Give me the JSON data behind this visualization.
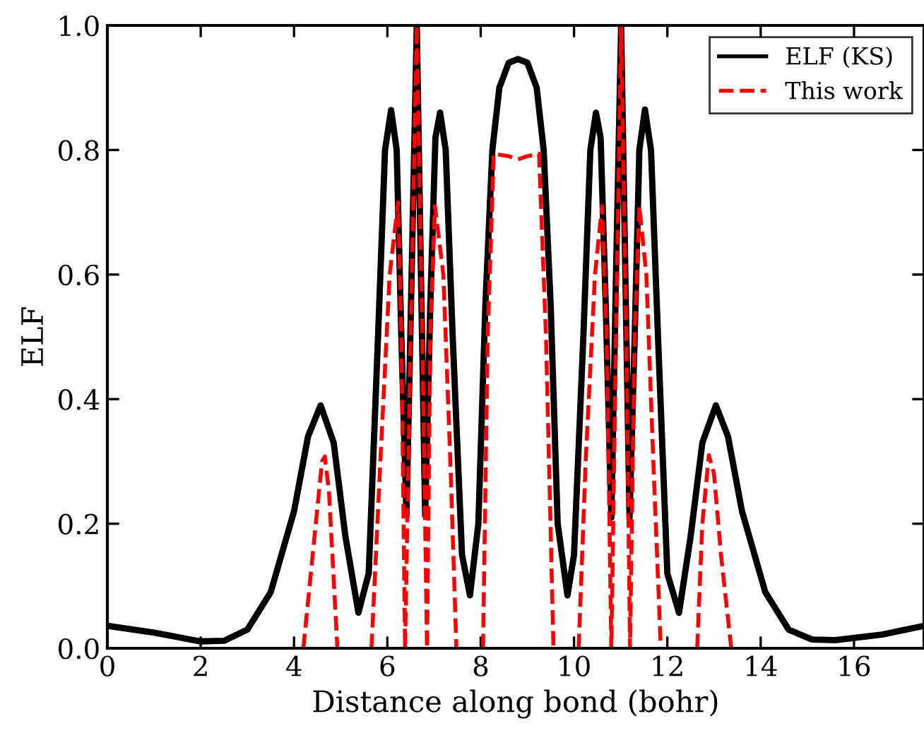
{
  "chart_data": {
    "type": "line",
    "xlabel": "Distance along bond (bohr)",
    "ylabel": "ELF",
    "xlim": [
      0,
      17.5
    ],
    "ylim": [
      0,
      1.0
    ],
    "xticks": [
      0,
      2,
      4,
      6,
      8,
      10,
      12,
      14,
      16
    ],
    "yticks": [
      {
        "value": 0,
        "label": "0.0"
      },
      {
        "value": 0.2,
        "label": "0.2"
      },
      {
        "value": 0.4,
        "label": "0.4"
      },
      {
        "value": 0.6,
        "label": "0.6"
      },
      {
        "value": 0.8,
        "label": "0.8"
      },
      {
        "value": 1.0,
        "label": "1.0"
      }
    ],
    "grid": false,
    "legend": "top right",
    "marker": "none",
    "series": [
      {
        "name": "ELF (KS)",
        "color": "#000000",
        "line_style": "solid",
        "x": [
          0,
          1,
          2,
          2.5,
          3,
          3.5,
          4,
          4.3,
          4.57,
          4.85,
          5.1,
          5.38,
          5.6,
          5.8,
          5.95,
          6.08,
          6.2,
          6.3,
          6.41,
          6.52,
          6.63,
          6.72,
          6.81,
          6.92,
          7.03,
          7.13,
          7.25,
          7.4,
          7.6,
          7.77,
          7.95,
          8.1,
          8.25,
          8.4,
          8.6,
          8.8,
          9.0,
          9.2,
          9.35,
          9.5,
          9.65,
          9.86,
          10.0,
          10.2,
          10.35,
          10.47,
          10.57,
          10.68,
          10.8,
          10.9,
          11.01,
          11.1,
          11.19,
          11.3,
          11.4,
          11.52,
          11.65,
          11.8,
          12.0,
          12.25,
          12.5,
          12.75,
          13.04,
          13.3,
          13.6,
          14.1,
          14.6,
          15.1,
          15.6,
          16.6,
          17.5
        ],
        "values": [
          0.036,
          0.025,
          0.011,
          0.012,
          0.03,
          0.09,
          0.22,
          0.34,
          0.39,
          0.33,
          0.18,
          0.057,
          0.12,
          0.5,
          0.8,
          0.864,
          0.8,
          0.5,
          0.213,
          0.6,
          1.0,
          0.6,
          0.213,
          0.55,
          0.82,
          0.86,
          0.8,
          0.5,
          0.15,
          0.085,
          0.2,
          0.55,
          0.8,
          0.9,
          0.94,
          0.946,
          0.94,
          0.9,
          0.8,
          0.55,
          0.2,
          0.085,
          0.15,
          0.5,
          0.8,
          0.86,
          0.82,
          0.55,
          0.21,
          0.6,
          1.0,
          0.6,
          0.21,
          0.5,
          0.8,
          0.865,
          0.8,
          0.5,
          0.12,
          0.057,
          0.18,
          0.33,
          0.39,
          0.34,
          0.22,
          0.09,
          0.03,
          0.014,
          0.013,
          0.022,
          0.036
        ]
      },
      {
        "name": "This work",
        "color": "#ff0000",
        "line_style": "dashed",
        "x": [
          4.2,
          4.4,
          4.6,
          4.66,
          4.75,
          4.93,
          5.3,
          5.66,
          5.85,
          6.05,
          6.23,
          6.3,
          6.38,
          6.5,
          6.63,
          6.75,
          6.85,
          6.92,
          7.02,
          7.2,
          7.35,
          7.48,
          7.8,
          8.05,
          8.15,
          8.28,
          8.6,
          8.8,
          9.0,
          9.25,
          9.4,
          9.56,
          9.8,
          10.1,
          10.25,
          10.45,
          10.6,
          10.7,
          10.8,
          10.9,
          11.01,
          11.12,
          11.2,
          11.3,
          11.4,
          11.55,
          11.7,
          11.86,
          12.2,
          12.64,
          12.75,
          12.89,
          13.0,
          13.15,
          13.37
        ],
        "values": [
          0,
          0.15,
          0.3,
          0.308,
          0.25,
          0,
          null,
          0,
          0.3,
          0.6,
          0.716,
          0.5,
          0,
          0.5,
          1.0,
          0.5,
          0,
          0.5,
          0.71,
          0.6,
          0.3,
          0,
          null,
          0,
          0.5,
          0.794,
          0.79,
          0.785,
          0.79,
          0.794,
          0.5,
          0,
          null,
          0,
          0.3,
          0.6,
          0.71,
          0.5,
          0,
          0.5,
          1.0,
          0.5,
          0,
          0.5,
          0.71,
          0.6,
          0.3,
          0,
          null,
          0,
          0.2,
          0.31,
          0.28,
          0.15,
          0
        ]
      }
    ]
  }
}
